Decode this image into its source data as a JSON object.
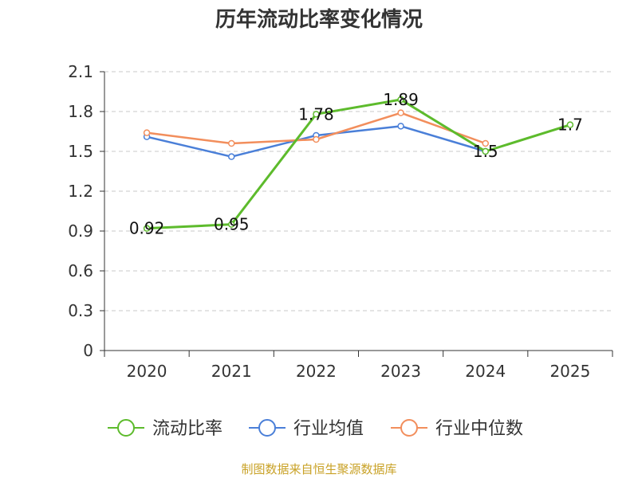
{
  "chart_data": {
    "type": "line",
    "title": "历年流动比率变化情况",
    "categories": [
      "2020",
      "2021",
      "2022",
      "2023",
      "2024",
      "2025"
    ],
    "ylim": [
      0,
      2.1
    ],
    "yticks": [
      "0",
      "0.3",
      "0.6",
      "0.9",
      "1.2",
      "1.5",
      "1.8",
      "2.1"
    ],
    "grid": true,
    "legend_position": "bottom",
    "series": [
      {
        "name": "流动比率",
        "color": "#5dbb2c",
        "values": [
          0.92,
          0.95,
          1.78,
          1.89,
          1.5,
          1.7
        ],
        "labels": [
          "0.92",
          "0.95",
          "1.78",
          "1.89",
          "1.5",
          "1.7"
        ]
      },
      {
        "name": "行业均值",
        "color": "#4a7fd8",
        "values": [
          1.61,
          1.46,
          1.62,
          1.69,
          1.5,
          null
        ]
      },
      {
        "name": "行业中位数",
        "color": "#f28e5c",
        "values": [
          1.64,
          1.56,
          1.59,
          1.79,
          1.56,
          null
        ]
      }
    ]
  },
  "footer": {
    "source": "制图数据来自恒生聚源数据库"
  }
}
